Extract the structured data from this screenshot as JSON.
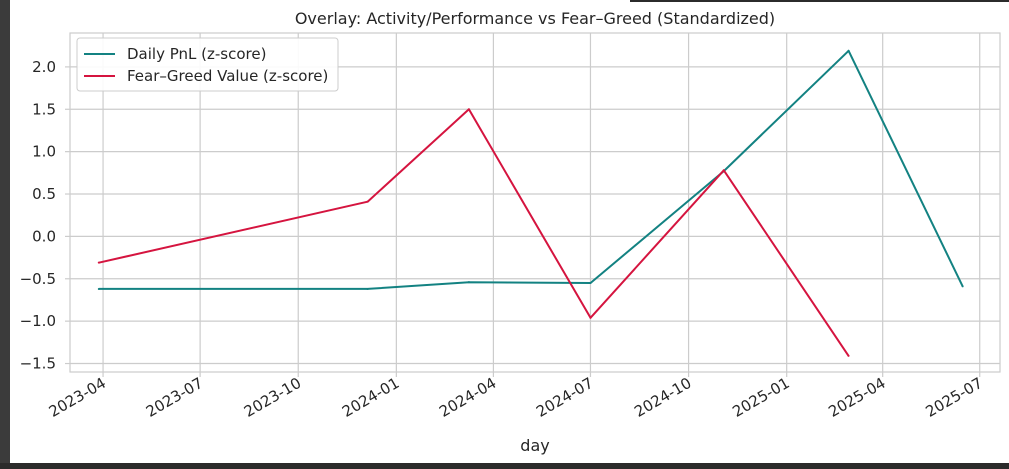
{
  "chart_data": {
    "type": "line",
    "title": "Overlay: Activity/Performance vs Fear–Greed (Standardized)",
    "xlabel": "day",
    "ylabel": "",
    "grid": true,
    "legend_position": "top-left",
    "xlim": [
      "2023-03-01",
      "2025-07-20"
    ],
    "ylim": [
      -1.6,
      2.4
    ],
    "x_ticks": [
      "2023-04",
      "2023-07",
      "2023-10",
      "2024-01",
      "2024-04",
      "2024-07",
      "2024-10",
      "2025-01",
      "2025-04",
      "2025-07"
    ],
    "y_ticks": [
      -1.5,
      -1.0,
      -0.5,
      0.0,
      0.5,
      1.0,
      1.5,
      2.0
    ],
    "y_tick_labels": [
      "−1.5",
      "−1.0",
      "−0.5",
      "0.0",
      "0.5",
      "1.0",
      "1.5",
      "2.0"
    ],
    "series": [
      {
        "name": "Daily PnL (z-score)",
        "color": "#138282",
        "points": [
          {
            "x": "2023-03-28",
            "y": -0.62
          },
          {
            "x": "2023-12-05",
            "y": -0.62
          },
          {
            "x": "2024-03-09",
            "y": -0.54
          },
          {
            "x": "2024-07-01",
            "y": -0.55
          },
          {
            "x": "2024-11-03",
            "y": 0.77
          },
          {
            "x": "2025-02-28",
            "y": 2.19
          },
          {
            "x": "2025-06-15",
            "y": -0.59
          }
        ]
      },
      {
        "name": "Fear–Greed Value (z-score)",
        "color": "#d5143f",
        "points": [
          {
            "x": "2023-03-28",
            "y": -0.31
          },
          {
            "x": "2023-12-05",
            "y": 0.41
          },
          {
            "x": "2024-03-09",
            "y": 1.5
          },
          {
            "x": "2024-07-01",
            "y": -0.96
          },
          {
            "x": "2024-11-03",
            "y": 0.78
          },
          {
            "x": "2025-02-28",
            "y": -1.41
          }
        ]
      }
    ]
  }
}
